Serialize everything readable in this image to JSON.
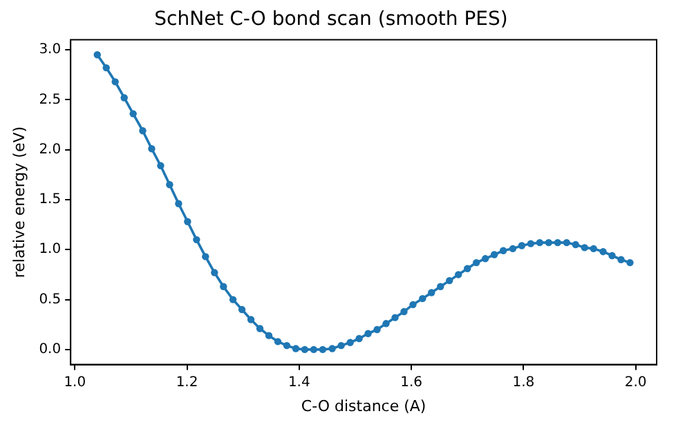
{
  "chart_data": {
    "type": "line",
    "title": "SchNet C-O bond scan (smooth PES)",
    "xlabel": "C-O distance (A)",
    "ylabel": "relative energy (eV)",
    "x": [
      1.04,
      1.056,
      1.072,
      1.088,
      1.104,
      1.121,
      1.137,
      1.153,
      1.169,
      1.185,
      1.201,
      1.217,
      1.233,
      1.249,
      1.265,
      1.282,
      1.298,
      1.314,
      1.33,
      1.346,
      1.362,
      1.378,
      1.394,
      1.41,
      1.426,
      1.442,
      1.459,
      1.475,
      1.491,
      1.507,
      1.523,
      1.539,
      1.555,
      1.571,
      1.587,
      1.603,
      1.62,
      1.636,
      1.652,
      1.668,
      1.684,
      1.7,
      1.716,
      1.732,
      1.748,
      1.764,
      1.781,
      1.797,
      1.813,
      1.829,
      1.845,
      1.861,
      1.877,
      1.893,
      1.909,
      1.925,
      1.942,
      1.958,
      1.974,
      1.99
    ],
    "series": [
      {
        "color": "#1f77b4",
        "values": [
          2.95,
          2.82,
          2.68,
          2.52,
          2.36,
          2.19,
          2.01,
          1.84,
          1.65,
          1.46,
          1.28,
          1.1,
          0.93,
          0.77,
          0.63,
          0.5,
          0.4,
          0.3,
          0.21,
          0.14,
          0.08,
          0.04,
          0.01,
          0.0,
          0.0,
          0.0,
          0.01,
          0.04,
          0.07,
          0.11,
          0.16,
          0.2,
          0.26,
          0.32,
          0.38,
          0.45,
          0.51,
          0.57,
          0.63,
          0.69,
          0.75,
          0.81,
          0.87,
          0.91,
          0.95,
          0.99,
          1.01,
          1.04,
          1.06,
          1.07,
          1.07,
          1.07,
          1.07,
          1.05,
          1.02,
          1.01,
          0.98,
          0.94,
          0.9,
          0.87
        ]
      }
    ],
    "xlim": [
      0.9925,
      2.0375
    ],
    "xticks": [
      {
        "value": 1.0,
        "label": "1.0"
      },
      {
        "value": 1.2,
        "label": "1.2"
      },
      {
        "value": 1.4,
        "label": "1.4"
      },
      {
        "value": 1.6,
        "label": "1.6"
      },
      {
        "value": 1.8,
        "label": "1.8"
      },
      {
        "value": 2.0,
        "label": "2.0"
      }
    ],
    "ylim": [
      -0.15,
      3.1
    ],
    "yticks": [
      {
        "value": 0.0,
        "label": "0.0"
      },
      {
        "value": 0.5,
        "label": "0.5"
      },
      {
        "value": 1.0,
        "label": "1.0"
      },
      {
        "value": 1.5,
        "label": "1.5"
      },
      {
        "value": 2.0,
        "label": "2.0"
      },
      {
        "value": 2.5,
        "label": "2.5"
      },
      {
        "value": 3.0,
        "label": "3.0"
      }
    ],
    "marker": "circle",
    "line_style": "solid",
    "grid": false,
    "legend": false
  }
}
